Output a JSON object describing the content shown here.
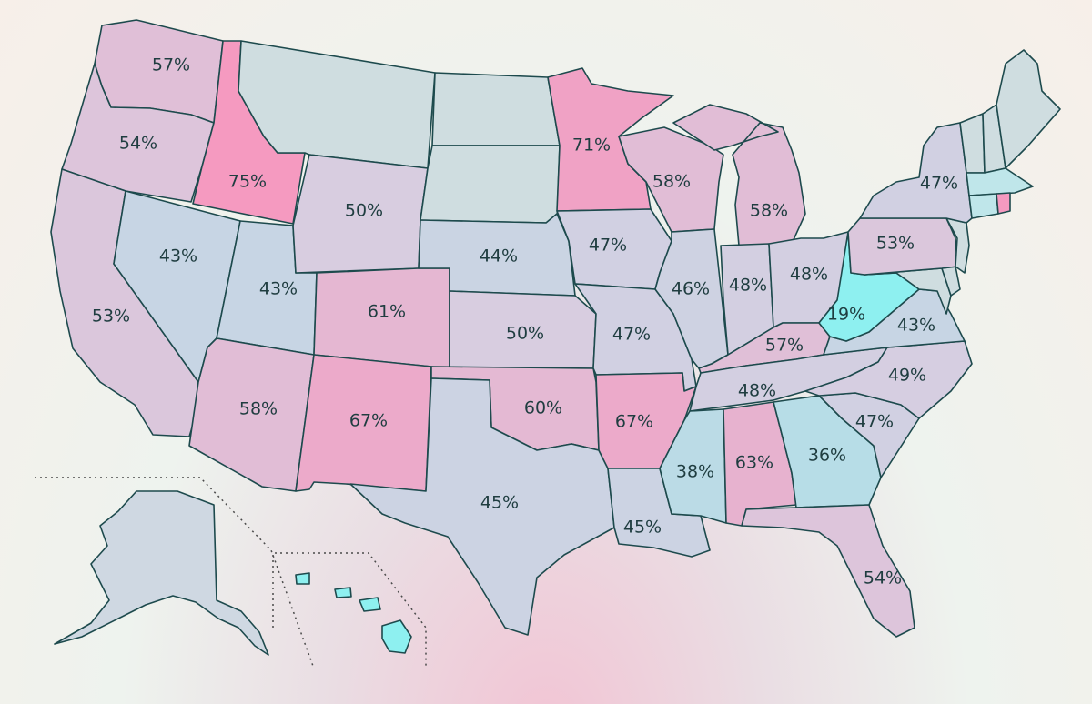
{
  "legend_scale": {
    "low_color": "#8ef0f0",
    "mid_color": "#d8cde0",
    "high_color": "#f59ac0",
    "neutral_color": "#cfdde0"
  },
  "states": [
    {
      "code": "WA",
      "label": "57%",
      "value": 57
    },
    {
      "code": "OR",
      "label": "54%",
      "value": 54
    },
    {
      "code": "CA",
      "label": "53%",
      "value": 53
    },
    {
      "code": "ID",
      "label": "75%",
      "value": 75
    },
    {
      "code": "NV",
      "label": "43%",
      "value": 43
    },
    {
      "code": "UT",
      "label": "43%",
      "value": 43
    },
    {
      "code": "AZ",
      "label": "58%",
      "value": 58
    },
    {
      "code": "WY",
      "label": "50%",
      "value": 50
    },
    {
      "code": "CO",
      "label": "61%",
      "value": 61
    },
    {
      "code": "NM",
      "label": "67%",
      "value": 67
    },
    {
      "code": "NE",
      "label": "44%",
      "value": 44
    },
    {
      "code": "KS",
      "label": "50%",
      "value": 50
    },
    {
      "code": "OK",
      "label": "60%",
      "value": 60
    },
    {
      "code": "TX",
      "label": "45%",
      "value": 45
    },
    {
      "code": "MN",
      "label": "71%",
      "value": 71
    },
    {
      "code": "IA",
      "label": "47%",
      "value": 47
    },
    {
      "code": "MO",
      "label": "47%",
      "value": 47
    },
    {
      "code": "AR",
      "label": "67%",
      "value": 67
    },
    {
      "code": "LA",
      "label": "45%",
      "value": 45
    },
    {
      "code": "WI",
      "label": "58%",
      "value": 58
    },
    {
      "code": "IL",
      "label": "46%",
      "value": 46
    },
    {
      "code": "MI",
      "label": "58%",
      "value": 58
    },
    {
      "code": "IN",
      "label": "48%",
      "value": 48
    },
    {
      "code": "OH",
      "label": "48%",
      "value": 48
    },
    {
      "code": "KY",
      "label": "57%",
      "value": 57
    },
    {
      "code": "TN",
      "label": "48%",
      "value": 48
    },
    {
      "code": "MS",
      "label": "38%",
      "value": 38
    },
    {
      "code": "AL",
      "label": "63%",
      "value": 63
    },
    {
      "code": "GA",
      "label": "36%",
      "value": 36
    },
    {
      "code": "FL",
      "label": "54%",
      "value": 54
    },
    {
      "code": "SC",
      "label": "47%",
      "value": 47
    },
    {
      "code": "NC",
      "label": "49%",
      "value": 49
    },
    {
      "code": "VA",
      "label": "43%",
      "value": 43
    },
    {
      "code": "WV",
      "label": "19%",
      "value": 19
    },
    {
      "code": "PA",
      "label": "53%",
      "value": 53
    },
    {
      "code": "NY",
      "label": "47%",
      "value": 47
    }
  ],
  "unlabeled_states": [
    {
      "code": "MT"
    },
    {
      "code": "ND"
    },
    {
      "code": "SD"
    },
    {
      "code": "NJ"
    },
    {
      "code": "DE"
    },
    {
      "code": "MD"
    },
    {
      "code": "CT"
    },
    {
      "code": "RI"
    },
    {
      "code": "MA"
    },
    {
      "code": "VT"
    },
    {
      "code": "NH"
    },
    {
      "code": "ME"
    },
    {
      "code": "AK"
    },
    {
      "code": "HI"
    }
  ]
}
